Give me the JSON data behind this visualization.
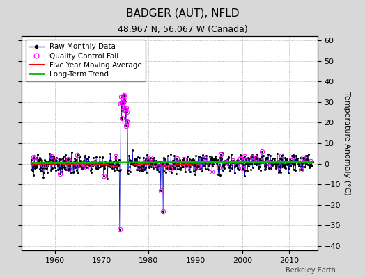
{
  "title": "BADGER (AUT), NFLD",
  "subtitle": "48.967 N, 56.067 W (Canada)",
  "ylabel": "Temperature Anomaly (°C)",
  "xlabel_credit": "Berkeley Earth",
  "ylim": [
    -42,
    62
  ],
  "yticks": [
    -40,
    -30,
    -20,
    -10,
    0,
    10,
    20,
    30,
    40,
    50,
    60
  ],
  "xlim": [
    1953,
    2016
  ],
  "xticks": [
    1960,
    1970,
    1980,
    1990,
    2000,
    2010
  ],
  "background_color": "#d8d8d8",
  "plot_bg_color": "#ffffff",
  "grid_color": "#bbbbbb",
  "line_color": "#0000cc",
  "marker_color": "#000000",
  "qc_fail_color": "#ff00ff",
  "moving_avg_color": "#ff0000",
  "trend_color": "#00bb00",
  "title_fontsize": 11,
  "subtitle_fontsize": 9,
  "axis_label_fontsize": 8,
  "tick_fontsize": 8,
  "legend_fontsize": 7.5
}
